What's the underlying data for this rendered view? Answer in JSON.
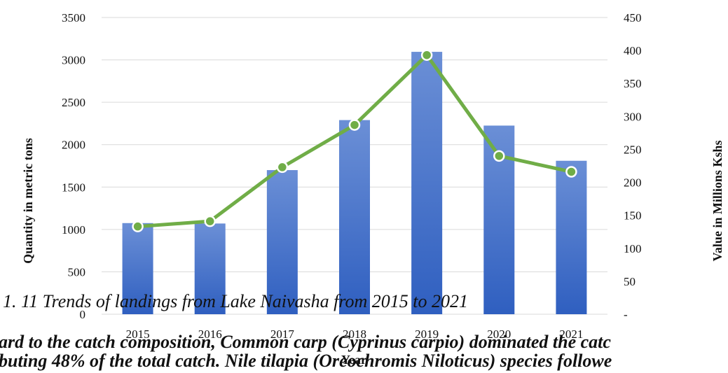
{
  "chart_data": {
    "type": "bar",
    "title": "",
    "categories": [
      "2015",
      "2016",
      "2017",
      "2018",
      "2019",
      "2020",
      "2021"
    ],
    "series": [
      {
        "type": "bar",
        "axis": "left",
        "color": "#4472c4",
        "values": [
          1075,
          1070,
          1700,
          2290,
          3095,
          2225,
          1810
        ]
      },
      {
        "type": "line",
        "axis": "right",
        "color": "#70ad47",
        "values": [
          133,
          141,
          223,
          287,
          393,
          240,
          216
        ]
      }
    ],
    "xlabel": "Year",
    "ylabel": "Quantity in metric tons",
    "y2label": "Value in Millions Kshs",
    "ylim": [
      0,
      3500
    ],
    "y2lim": [
      0,
      450
    ],
    "yticks": [
      "0",
      "500",
      "1000",
      "1500",
      "2000",
      "2500",
      "3000",
      "3500"
    ],
    "y2ticks": [
      "-",
      "50",
      "100",
      "150",
      "200",
      "250",
      "300",
      "350",
      "400",
      "450"
    ],
    "grid": true
  },
  "text": {
    "caption": "1. 11 Trends of landings from Lake Naivasha from 2015 to 2021",
    "para_line1": "ard to the catch composition, Common carp (Cyprinus carpio) dominated the catc",
    "para_line2": "buting 48% of the total catch. Nile tilapia (Oreochromis Niloticus) species followe"
  }
}
